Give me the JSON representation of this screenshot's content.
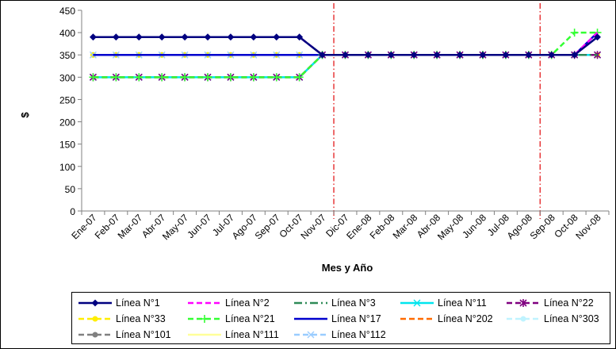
{
  "chart_data": {
    "type": "line",
    "title": "",
    "xlabel": "Mes y Año",
    "ylabel": "$",
    "ylim": [
      0,
      450
    ],
    "yticks": [
      0,
      50,
      100,
      150,
      200,
      250,
      300,
      350,
      400,
      450
    ],
    "grid": false,
    "legend_position": "bottom",
    "categories": [
      "Ene-07",
      "Feb-07",
      "Mar-07",
      "Abr-07",
      "May-07",
      "Jun-07",
      "Jul-07",
      "Ago-07",
      "Sep-07",
      "Oct-07",
      "Nov-07",
      "Dic-07",
      "Ene-08",
      "Feb-08",
      "Mar-08",
      "Abr-08",
      "May-08",
      "Jun-08",
      "Jul-08",
      "Ago-08",
      "Sep-08",
      "Oct-08",
      "Nov-08"
    ],
    "vertical_markers": [
      {
        "between": [
          "Nov-07",
          "Dic-07"
        ],
        "color": "#e31a1c",
        "style": "dash-dot"
      },
      {
        "between": [
          "Ago-08",
          "Sep-08"
        ],
        "color": "#e31a1c",
        "style": "dash-dot"
      }
    ],
    "series": [
      {
        "name": "Línea N°1",
        "color": "#000080",
        "dash": "solid",
        "marker": "diamond",
        "values": [
          390,
          390,
          390,
          390,
          390,
          390,
          390,
          390,
          390,
          390,
          350,
          350,
          350,
          350,
          350,
          350,
          350,
          350,
          350,
          350,
          350,
          350,
          390
        ]
      },
      {
        "name": "Línea N°2",
        "color": "#ff00ff",
        "dash": "dash",
        "marker": "none",
        "values": [
          390,
          390,
          390,
          390,
          390,
          390,
          390,
          390,
          390,
          390,
          350,
          350,
          350,
          350,
          350,
          350,
          350,
          350,
          350,
          350,
          350,
          350,
          400
        ]
      },
      {
        "name": "Línea N°3",
        "color": "#2e8b57",
        "dash": "dashdot",
        "marker": "none",
        "values": [
          390,
          390,
          390,
          390,
          390,
          390,
          390,
          390,
          390,
          390,
          350,
          350,
          350,
          350,
          350,
          350,
          350,
          350,
          350,
          350,
          350,
          350,
          350
        ]
      },
      {
        "name": "Línea N°11",
        "color": "#00e5ee",
        "dash": "solid",
        "marker": "x",
        "values": [
          300,
          300,
          300,
          300,
          300,
          300,
          300,
          300,
          300,
          300,
          350,
          350,
          350,
          350,
          350,
          350,
          350,
          350,
          350,
          350,
          350,
          350,
          350
        ]
      },
      {
        "name": "Línea N°22",
        "color": "#800080",
        "dash": "dash",
        "marker": "star",
        "values": [
          300,
          300,
          300,
          300,
          300,
          300,
          300,
          300,
          300,
          300,
          350,
          350,
          350,
          350,
          350,
          350,
          350,
          350,
          350,
          350,
          350,
          350,
          350
        ]
      },
      {
        "name": "Línea N°33",
        "color": "#ffee00",
        "dash": "dash",
        "marker": "dot",
        "values": [
          350,
          350,
          350,
          350,
          350,
          350,
          350,
          350,
          350,
          350,
          350,
          350,
          350,
          350,
          350,
          350,
          350,
          350,
          350,
          350,
          350,
          350,
          350
        ]
      },
      {
        "name": "Línea N°21",
        "color": "#33ff33",
        "dash": "dash",
        "marker": "plus",
        "values": [
          300,
          300,
          300,
          300,
          300,
          300,
          300,
          300,
          300,
          300,
          350,
          350,
          350,
          350,
          350,
          350,
          350,
          350,
          350,
          350,
          350,
          400,
          400
        ]
      },
      {
        "name": "Línea N°17",
        "color": "#0000cd",
        "dash": "solid",
        "marker": "none",
        "values": [
          350,
          350,
          350,
          350,
          350,
          350,
          350,
          350,
          350,
          350,
          350,
          350,
          350,
          350,
          350,
          350,
          350,
          350,
          350,
          350,
          350,
          350,
          400
        ]
      },
      {
        "name": "Línea N°202",
        "color": "#ff6a00",
        "dash": "dash",
        "marker": "none",
        "values": [
          300,
          300,
          300,
          300,
          300,
          300,
          300,
          300,
          300,
          300,
          350,
          350,
          350,
          350,
          350,
          350,
          350,
          350,
          350,
          350,
          350,
          350,
          350
        ]
      },
      {
        "name": "Línea N°303",
        "color": "#bff3ff",
        "dash": "dash",
        "marker": "dot",
        "values": [
          350,
          350,
          350,
          350,
          350,
          350,
          350,
          350,
          350,
          350,
          350,
          350,
          350,
          350,
          350,
          350,
          350,
          350,
          350,
          350,
          350,
          350,
          350
        ]
      },
      {
        "name": "Línea N°101",
        "color": "#808080",
        "dash": "dash",
        "marker": "dot",
        "values": [
          350,
          350,
          350,
          350,
          350,
          350,
          350,
          350,
          350,
          350,
          350,
          350,
          350,
          350,
          350,
          350,
          350,
          350,
          350,
          350,
          350,
          350,
          350
        ]
      },
      {
        "name": "Línea N°111",
        "color": "#ffff99",
        "dash": "solid",
        "marker": "none",
        "values": [
          350,
          350,
          350,
          350,
          350,
          350,
          350,
          350,
          350,
          350,
          350,
          350,
          350,
          350,
          350,
          350,
          350,
          350,
          350,
          350,
          350,
          350,
          350
        ]
      },
      {
        "name": "Línea N°112",
        "color": "#99ccff",
        "dash": "dash",
        "marker": "x",
        "values": [
          350,
          350,
          350,
          350,
          350,
          350,
          350,
          350,
          350,
          350,
          350,
          350,
          350,
          350,
          350,
          350,
          350,
          350,
          350,
          350,
          350,
          350,
          350
        ]
      }
    ]
  }
}
